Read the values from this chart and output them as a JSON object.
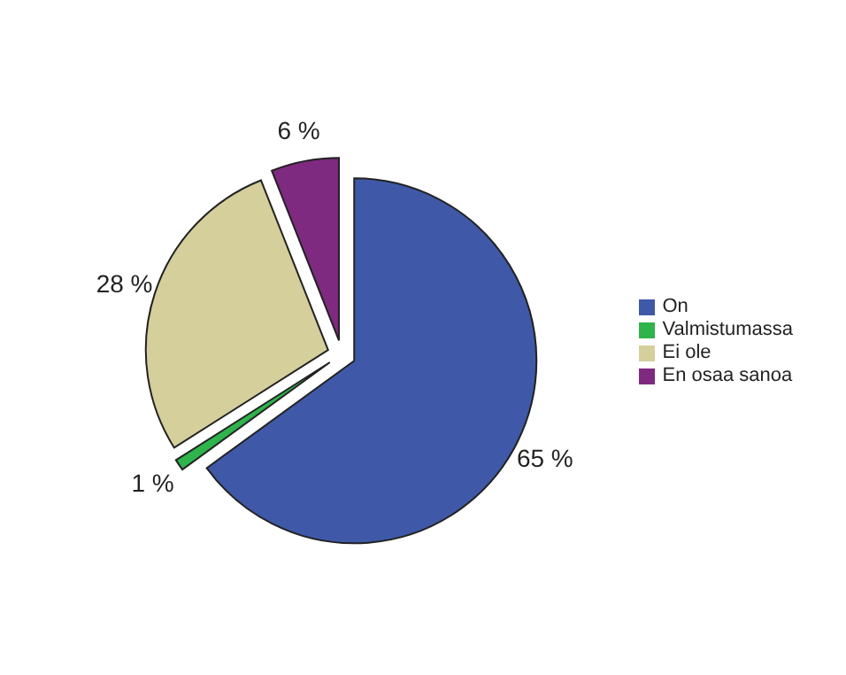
{
  "chart_data": {
    "type": "pie",
    "categories": [
      "On",
      "Valmistumassa",
      "Ei ole",
      "En osaa sanoa"
    ],
    "values": [
      65,
      1,
      28,
      6
    ],
    "colors": [
      "#3f59a8",
      "#2fb34b",
      "#d4cf9b",
      "#7e2a80"
    ],
    "value_labels": [
      "65 %",
      "1 %",
      "28 %",
      "6 %"
    ],
    "legend": "right"
  }
}
